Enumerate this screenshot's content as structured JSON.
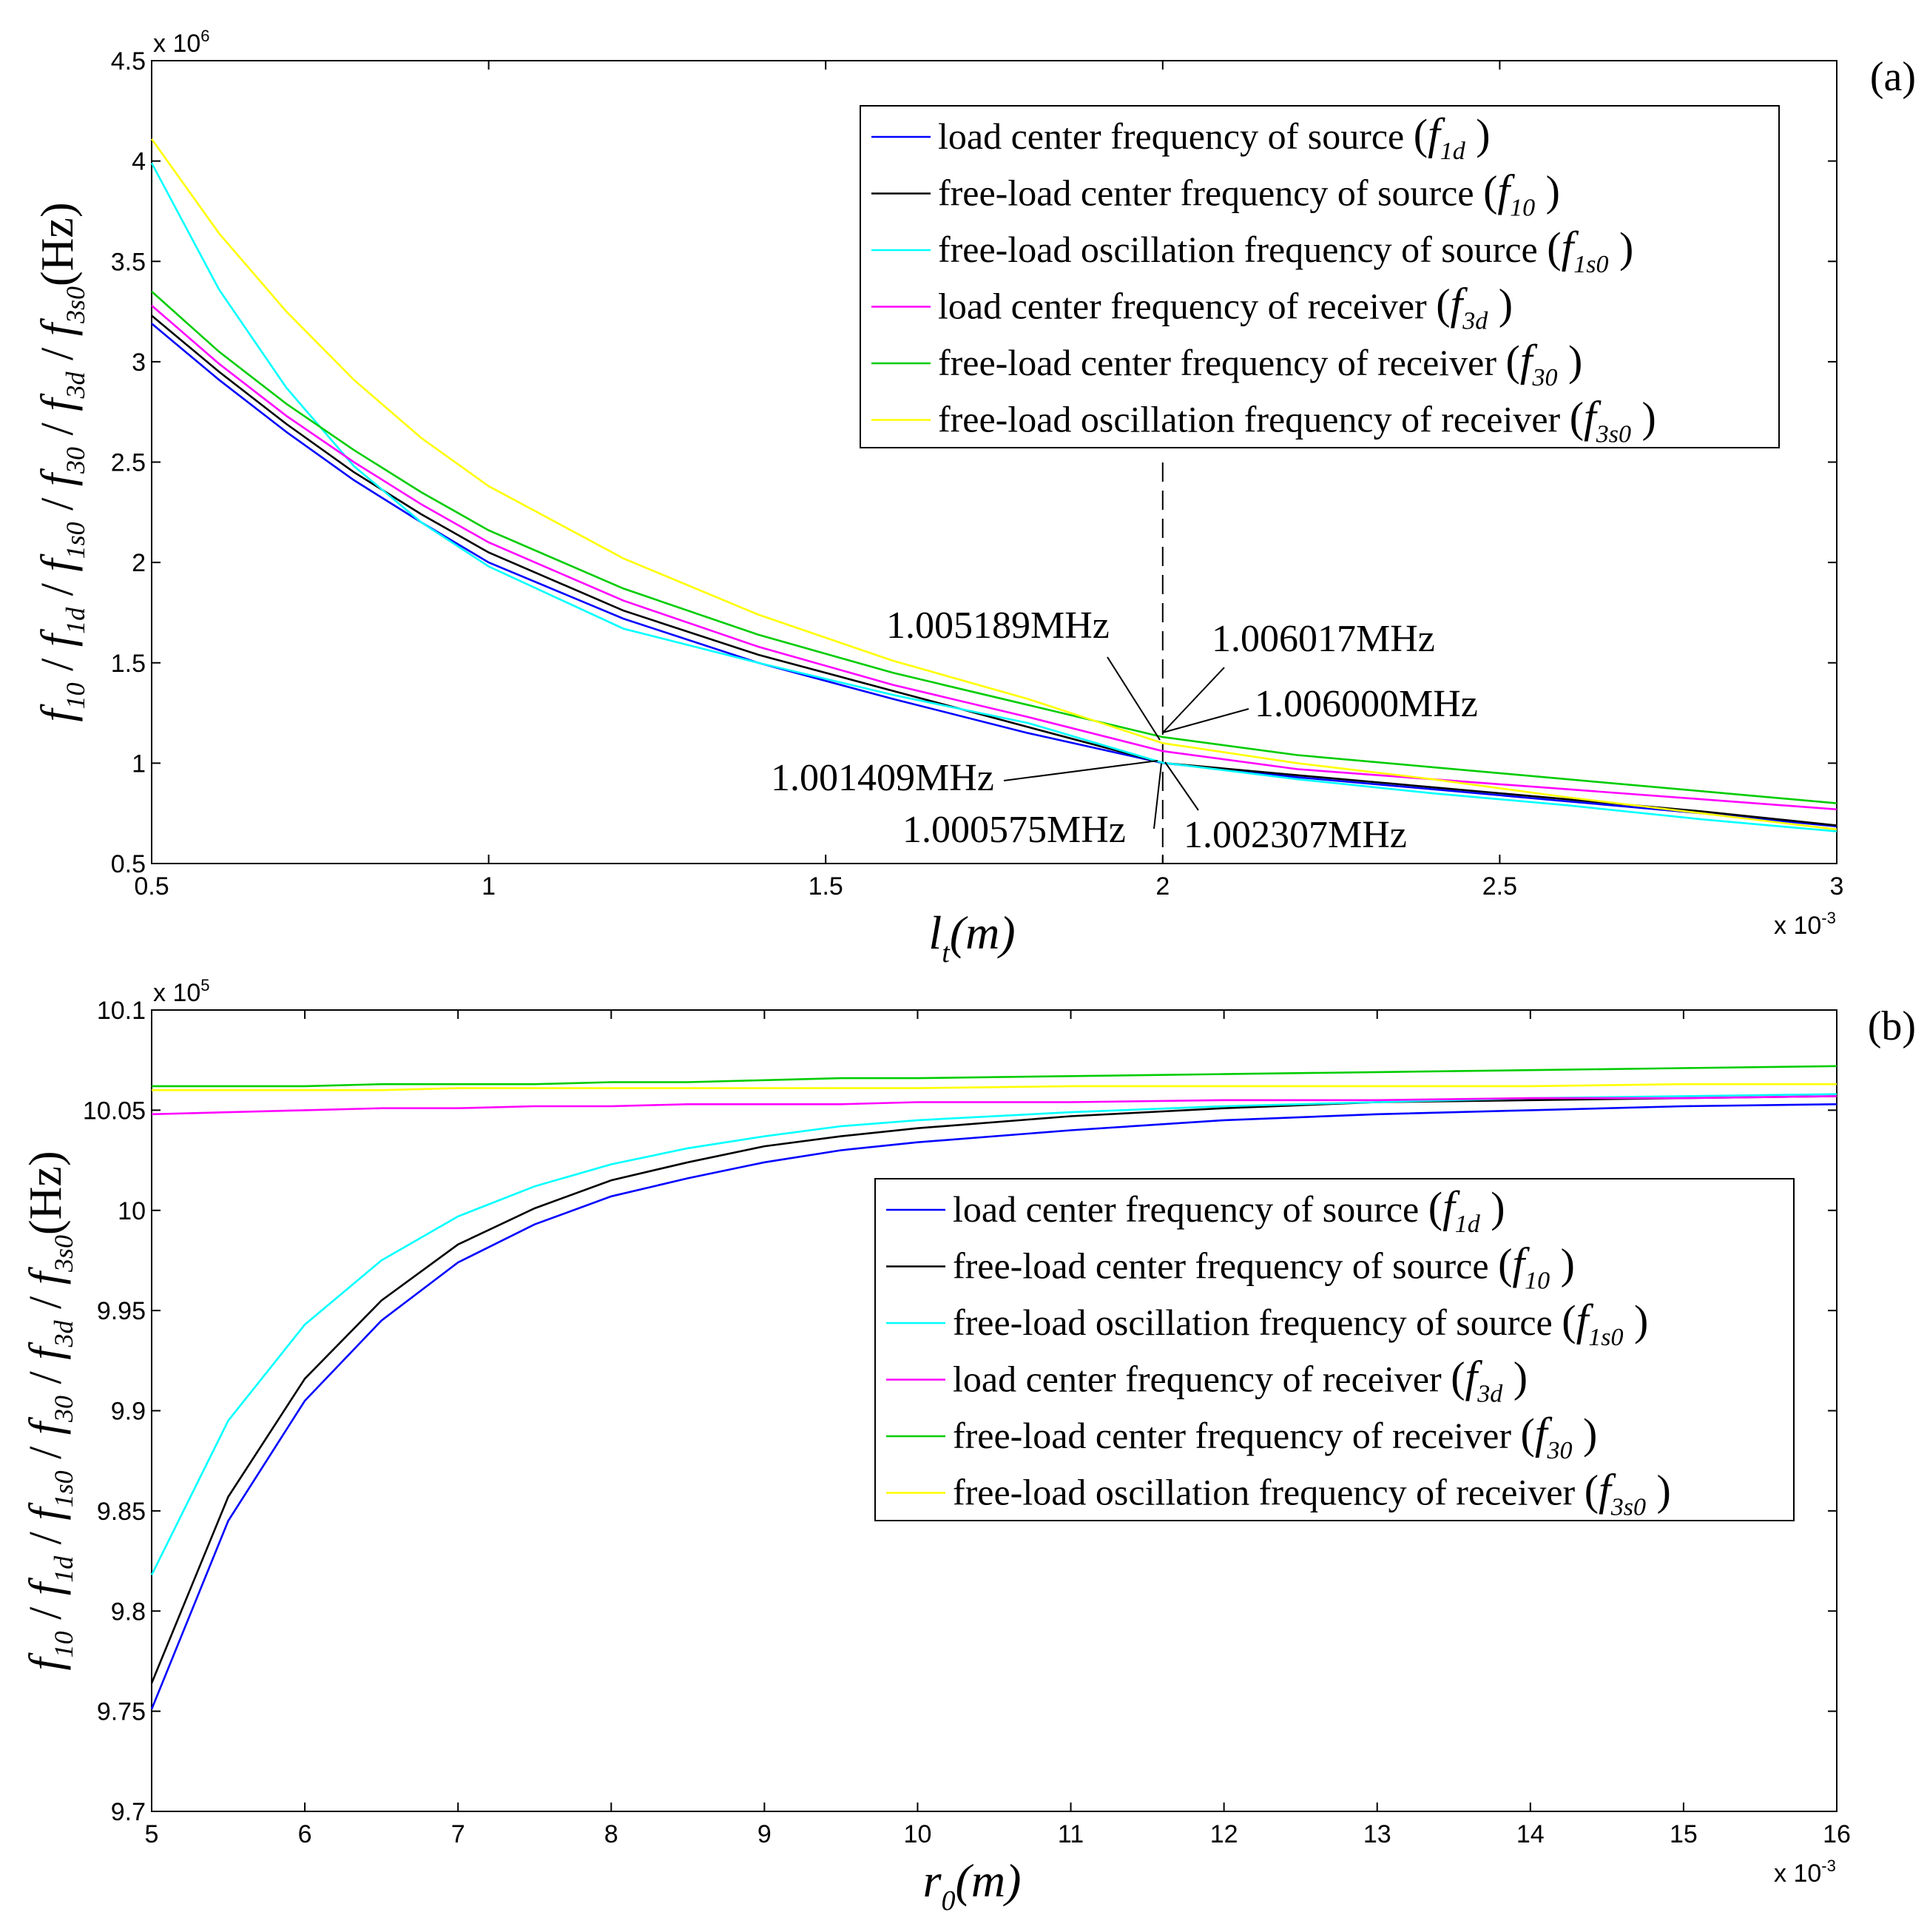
{
  "chart_data": [
    {
      "type": "line",
      "panel_label": "(a)",
      "xlabel_main": "l",
      "xlabel_sub": "t",
      "xlabel_rest": "(m)",
      "x_multiplier": "x 10",
      "x_multiplier_exp": "-3",
      "y_multiplier": "x 10",
      "y_multiplier_exp": "6",
      "ylabel": "f10 / f1d / f1s0 / f30 / f3d / f3s0 (Hz)",
      "xlim": [
        0.5,
        3
      ],
      "ylim": [
        0.5,
        4.5
      ],
      "x_ticks": [
        0.5,
        1,
        1.5,
        2,
        2.5,
        3
      ],
      "x_tick_labels": [
        "0.5",
        "1",
        "1.5",
        "2",
        "2.5",
        "3"
      ],
      "y_ticks": [
        0.5,
        1,
        1.5,
        2,
        2.5,
        3,
        3.5,
        4,
        4.5
      ],
      "y_tick_labels": [
        "0.5",
        "1",
        "1.5",
        "2",
        "2.5",
        "3",
        "3.5",
        "4",
        "4.5"
      ],
      "x": [
        0.5,
        0.6,
        0.7,
        0.8,
        0.9,
        1.0,
        1.2,
        1.4,
        1.6,
        1.8,
        2.0,
        2.2,
        2.4,
        2.6,
        2.8,
        3.0
      ],
      "series": [
        {
          "name": "load center frequency of source",
          "symbol": "f",
          "sub": "1d",
          "color": "#0000ff",
          "values": [
            3.19,
            2.91,
            2.65,
            2.41,
            2.2,
            2.0,
            1.72,
            1.5,
            1.32,
            1.15,
            1.0006,
            0.93,
            0.87,
            0.81,
            0.75,
            0.685
          ]
        },
        {
          "name": "free-load center frequency of source",
          "symbol": "f",
          "sub": "10",
          "color": "#000000",
          "values": [
            3.23,
            2.95,
            2.69,
            2.45,
            2.24,
            2.05,
            1.76,
            1.54,
            1.36,
            1.18,
            1.0014,
            0.94,
            0.88,
            0.82,
            0.76,
            0.69
          ]
        },
        {
          "name": "free-load oscillation frequency of source",
          "symbol": "f",
          "sub": "1s0",
          "color": "#00ffff",
          "values": [
            3.99,
            3.36,
            2.87,
            2.48,
            2.2,
            1.98,
            1.67,
            1.5,
            1.34,
            1.2,
            1.0023,
            0.92,
            0.85,
            0.79,
            0.72,
            0.66
          ]
        },
        {
          "name": "load center frequency of receiver",
          "symbol": "f",
          "sub": "3d",
          "color": "#ff00ff",
          "values": [
            3.28,
            2.99,
            2.73,
            2.5,
            2.29,
            2.1,
            1.81,
            1.58,
            1.39,
            1.23,
            1.06,
            0.97,
            0.92,
            0.87,
            0.82,
            0.77
          ]
        },
        {
          "name": "free-load center frequency of receiver",
          "symbol": "f",
          "sub": "30",
          "color": "#00cc00",
          "values": [
            3.35,
            3.05,
            2.79,
            2.56,
            2.35,
            2.16,
            1.87,
            1.64,
            1.45,
            1.29,
            1.13,
            1.04,
            0.98,
            0.92,
            0.86,
            0.8
          ]
        },
        {
          "name": "free-load oscillation frequency of receiver",
          "symbol": "f",
          "sub": "3s0",
          "color": "#ffff00",
          "values": [
            4.11,
            3.64,
            3.25,
            2.91,
            2.62,
            2.38,
            2.02,
            1.74,
            1.51,
            1.32,
            1.1,
            1.0,
            0.92,
            0.83,
            0.75,
            0.67
          ]
        }
      ],
      "annotations": [
        {
          "text": "1.005189MHz"
        },
        {
          "text": "1.006017MHz"
        },
        {
          "text": "1.006000MHz"
        },
        {
          "text": "1.001409MHz"
        },
        {
          "text": "1.000575MHz"
        },
        {
          "text": "1.002307MHz"
        }
      ]
    },
    {
      "type": "line",
      "panel_label": "(b)",
      "xlabel_main": "r",
      "xlabel_sub": "0",
      "xlabel_rest": "(m)",
      "x_multiplier": "x 10",
      "x_multiplier_exp": "-3",
      "y_multiplier": "x 10",
      "y_multiplier_exp": "5",
      "ylabel": "f10 / f1d / f1s0 / f30 / f3d / f3s0 (Hz)",
      "xlim": [
        5,
        16
      ],
      "ylim": [
        9.7,
        10.1
      ],
      "x_ticks": [
        5,
        6,
        7,
        8,
        9,
        10,
        11,
        12,
        13,
        14,
        15,
        16
      ],
      "x_tick_labels": [
        "5",
        "6",
        "7",
        "8",
        "9",
        "10",
        "11",
        "12",
        "13",
        "14",
        "15",
        "16"
      ],
      "y_ticks": [
        9.7,
        9.75,
        9.8,
        9.85,
        9.9,
        9.95,
        10.0,
        10.05,
        10.1
      ],
      "y_tick_labels": [
        "9.7",
        "9.75",
        "9.8",
        "9.85",
        "9.9",
        "9.95",
        "10",
        "10.05",
        "10.1"
      ],
      "x": [
        5,
        5.5,
        6,
        6.5,
        7,
        7.5,
        8,
        8.5,
        9,
        9.5,
        10,
        11,
        12,
        13,
        14,
        15,
        16
      ],
      "series": [
        {
          "name": "load center frequency of source",
          "symbol": "f",
          "sub": "1d",
          "color": "#0000ff",
          "values": [
            9.751,
            9.845,
            9.905,
            9.945,
            9.974,
            9.993,
            10.007,
            10.016,
            10.024,
            10.03,
            10.034,
            10.04,
            10.045,
            10.048,
            10.05,
            10.052,
            10.053
          ]
        },
        {
          "name": "free-load center frequency of source",
          "symbol": "f",
          "sub": "10",
          "color": "#000000",
          "values": [
            9.764,
            9.857,
            9.916,
            9.955,
            9.983,
            10.001,
            10.015,
            10.024,
            10.032,
            10.037,
            10.041,
            10.047,
            10.051,
            10.054,
            10.055,
            10.056,
            10.057
          ]
        },
        {
          "name": "free-load oscillation frequency of source",
          "symbol": "f",
          "sub": "1s0",
          "color": "#00ffff",
          "values": [
            9.818,
            9.895,
            9.943,
            9.975,
            9.997,
            10.012,
            10.023,
            10.031,
            10.037,
            10.042,
            10.045,
            10.049,
            10.052,
            10.054,
            10.056,
            10.057,
            10.058
          ]
        },
        {
          "name": "load center frequency of receiver",
          "symbol": "f",
          "sub": "3d",
          "color": "#ff00ff",
          "values": [
            10.048,
            10.049,
            10.05,
            10.051,
            10.051,
            10.052,
            10.052,
            10.053,
            10.053,
            10.053,
            10.054,
            10.054,
            10.055,
            10.055,
            10.056,
            10.056,
            10.057
          ]
        },
        {
          "name": "free-load center frequency of receiver",
          "symbol": "f",
          "sub": "30",
          "color": "#00cc00",
          "values": [
            10.062,
            10.062,
            10.062,
            10.063,
            10.063,
            10.063,
            10.064,
            10.064,
            10.065,
            10.066,
            10.066,
            10.067,
            10.068,
            10.069,
            10.07,
            10.071,
            10.072
          ]
        },
        {
          "name": "free-load oscillation frequency of receiver",
          "symbol": "f",
          "sub": "3s0",
          "color": "#ffff00",
          "values": [
            10.06,
            10.06,
            10.06,
            10.06,
            10.061,
            10.061,
            10.061,
            10.061,
            10.061,
            10.061,
            10.061,
            10.062,
            10.062,
            10.062,
            10.062,
            10.063,
            10.063
          ]
        }
      ]
    }
  ]
}
